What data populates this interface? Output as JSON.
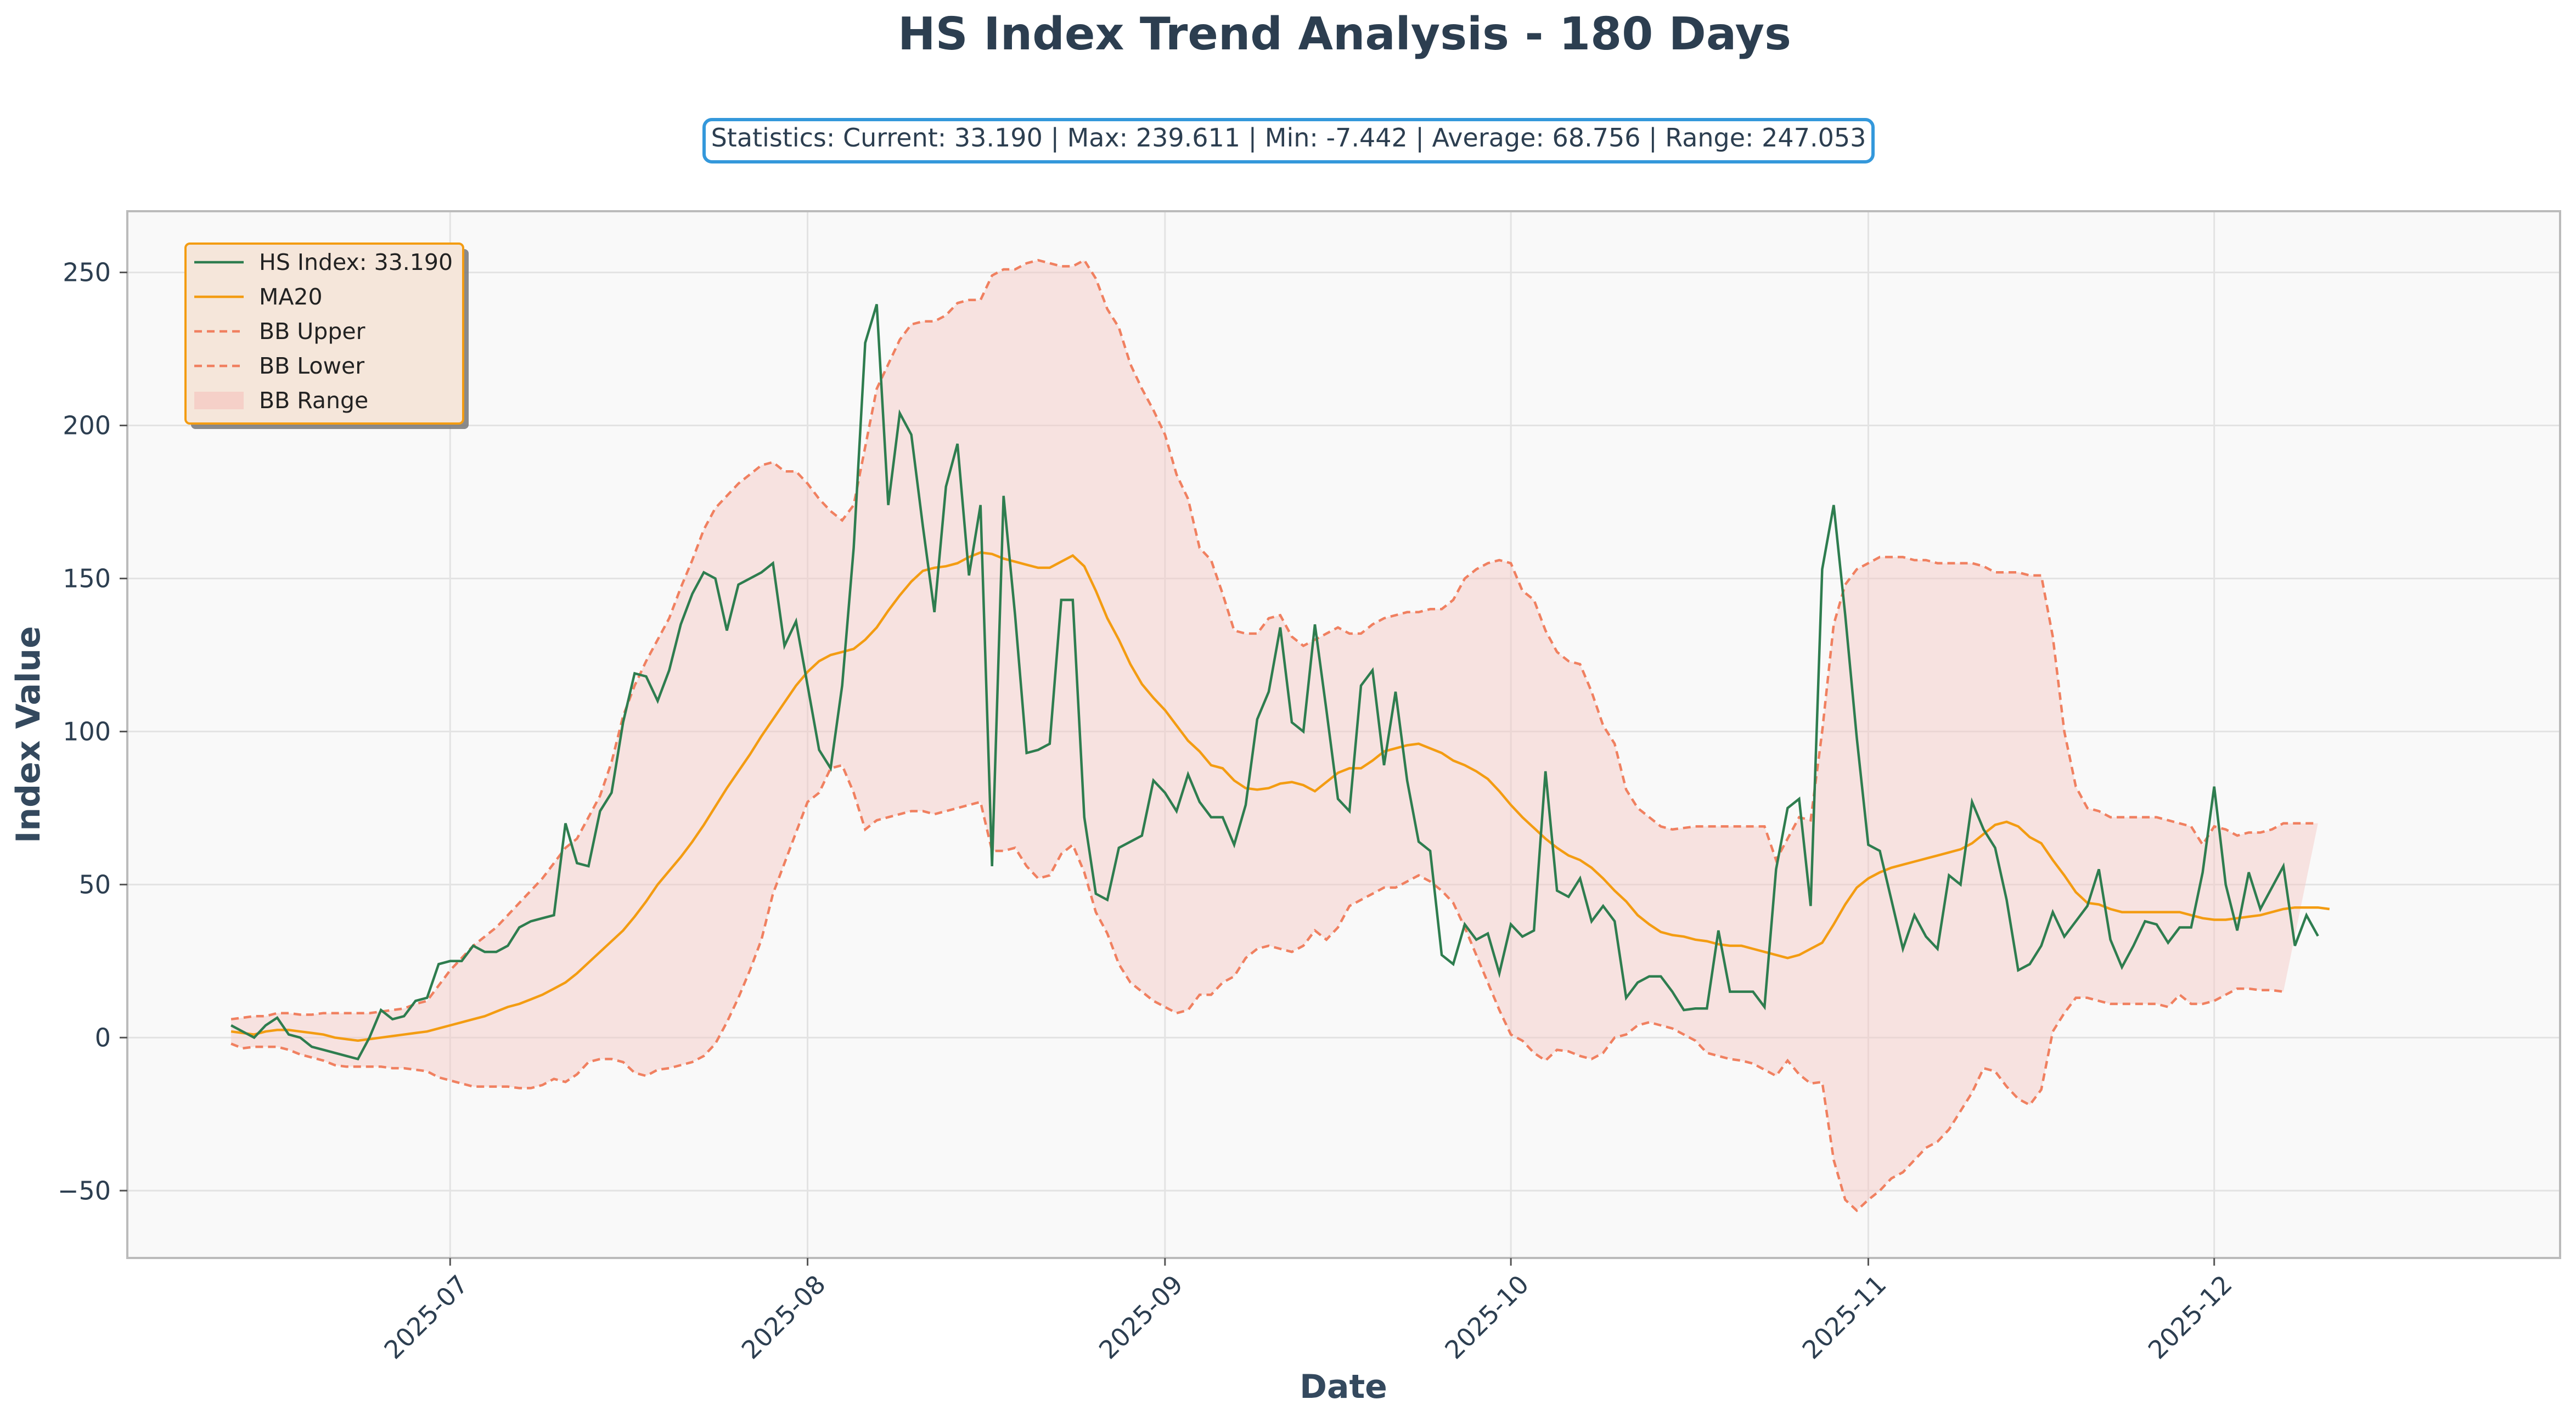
{
  "chart_data": {
    "type": "line",
    "title": "HS Index Trend Analysis - 180 Days",
    "stats_label": "Statistics: Current: 33.190 | Max: 239.611 | Min: -7.442 | Average: 68.756 | Range: 247.053",
    "xlabel": "Date",
    "ylabel": "Index Value",
    "x_start": "2025-06-12",
    "x_step_days": 1,
    "xlim": [
      "2025-06-03",
      "2025-12-31"
    ],
    "ylim": [
      -72,
      270
    ],
    "x_ticks": [
      {
        "date": "2025-07-01",
        "label": "2025-07"
      },
      {
        "date": "2025-08-01",
        "label": "2025-08"
      },
      {
        "date": "2025-09-01",
        "label": "2025-09"
      },
      {
        "date": "2025-10-01",
        "label": "2025-10"
      },
      {
        "date": "2025-11-01",
        "label": "2025-11"
      },
      {
        "date": "2025-12-01",
        "label": "2025-12"
      }
    ],
    "y_ticks": [
      {
        "value": 250,
        "label": "250"
      },
      {
        "value": 200,
        "label": "200"
      },
      {
        "value": 150,
        "label": "150"
      },
      {
        "value": 100,
        "label": "100"
      },
      {
        "value": 50,
        "label": "50"
      },
      {
        "value": 0,
        "label": "0"
      },
      {
        "value": -50,
        "label": "−50"
      }
    ],
    "grid": true,
    "legend_position": "top-left",
    "colors": {
      "hs": "#2e7d4f",
      "ma": "#f39c12",
      "bb": "#f08060",
      "bb_fill": "#f5c6c0",
      "plot_bg": "#f9f9f9",
      "legend_bg": "#f5e6da",
      "legend_border": "#f39c12",
      "stats_border": "#3498db"
    },
    "series": [
      {
        "name": "HS Index: 33.190",
        "key": "hs",
        "values": [
          4.0,
          2.0,
          0.0,
          4.0,
          6.5,
          1.0,
          0.0,
          -3.0,
          -4.0,
          -5.0,
          -6.0,
          -7.0,
          0.0,
          9.0,
          6.0,
          7.0,
          12.0,
          13.0,
          24.0,
          25.0,
          25.0,
          30.0,
          28.0,
          28.0,
          30.0,
          36.0,
          38.0,
          39.0,
          40.0,
          70.0,
          57.0,
          56.0,
          74.0,
          80.0,
          103.0,
          119.0,
          118.0,
          110.0,
          120.0,
          135.0,
          145.0,
          152.0,
          150.0,
          133.0,
          148.0,
          150.0,
          152.0,
          155.0,
          128.0,
          136.0,
          115.0,
          94.0,
          88.0,
          115.0,
          160.0,
          227.0,
          239.6,
          174.0,
          204.0,
          197.0,
          167.0,
          139.0,
          180.0,
          194.0,
          151.0,
          174.0,
          56.0,
          177.0,
          138.0,
          93.0,
          94.0,
          96.0,
          143.0,
          143.0,
          72.0,
          47.0,
          45.0,
          62.0,
          64.0,
          66.0,
          84.0,
          80.0,
          74.0,
          86.0,
          77.0,
          72.0,
          72.0,
          63.0,
          76.0,
          104.0,
          113.0,
          134.0,
          103.0,
          100.0,
          135.0,
          107.0,
          78.0,
          74.0,
          115.0,
          120.0,
          89.0,
          113.0,
          84.0,
          64.0,
          61.0,
          27.0,
          24.0,
          37.0,
          32.0,
          34.0,
          21.0,
          37.0,
          33.0,
          35.0,
          87.0,
          48.0,
          46.0,
          52.0,
          38.0,
          43.0,
          38.0,
          13.0,
          18.0,
          20.0,
          20.0,
          15.0,
          9.0,
          9.5,
          9.5,
          35.0,
          15.0,
          15.0,
          15.0,
          10.0,
          55.0,
          75.0,
          78.0,
          43.0,
          153.0,
          174.0,
          138.0,
          98.0,
          63.0,
          61.0,
          45.0,
          29.0,
          40.0,
          33.0,
          29.0,
          53.0,
          50.0,
          77.0,
          68.0,
          62.0,
          45.0,
          22.0,
          24.0,
          30.0,
          41.0,
          33.0,
          38.0,
          43.0,
          55.0,
          32.0,
          23.0,
          30.0,
          38.0,
          37.0,
          31.0,
          36.0,
          36.0,
          54.0,
          82.0,
          50.0,
          35.0,
          54.0,
          42.0,
          49.0,
          56.0,
          30.0,
          40.0,
          33.19
        ]
      },
      {
        "name": "MA20",
        "key": "ma",
        "values": [
          2.0,
          1.5,
          1.0,
          2.0,
          2.5,
          2.5,
          2.0,
          1.5,
          1.0,
          0.0,
          -0.5,
          -1.0,
          -0.5,
          0.0,
          0.5,
          1.0,
          1.5,
          2.0,
          3.0,
          4.0,
          5.0,
          6.0,
          7.0,
          8.5,
          10.0,
          11.0,
          12.5,
          14.0,
          16.0,
          18.0,
          21.0,
          24.5,
          28.0,
          31.5,
          35.0,
          39.5,
          44.5,
          50.0,
          54.5,
          59.0,
          64.0,
          69.5,
          75.5,
          81.5,
          87.0,
          92.5,
          98.5,
          104.0,
          109.5,
          115.0,
          119.5,
          123.0,
          125.0,
          126.0,
          127.0,
          130.0,
          134.0,
          139.5,
          144.5,
          149.0,
          152.5,
          153.5,
          154.0,
          155.0,
          157.0,
          158.5,
          158.0,
          156.5,
          155.5,
          154.5,
          153.5,
          153.5,
          155.5,
          157.5,
          154.0,
          146.0,
          137.0,
          130.0,
          122.0,
          115.5,
          111.0,
          107.0,
          102.0,
          97.0,
          93.5,
          89.0,
          88.0,
          84.0,
          81.5,
          81.0,
          81.5,
          83.0,
          83.5,
          82.5,
          80.5,
          83.5,
          86.5,
          88.0,
          88.0,
          90.5,
          93.5,
          94.5,
          95.5,
          96.0,
          94.5,
          93.0,
          90.5,
          89.0,
          87.0,
          84.5,
          80.5,
          76.0,
          72.0,
          68.5,
          65.0,
          62.0,
          59.5,
          58.0,
          55.5,
          52.0,
          48.0,
          44.5,
          40.0,
          37.0,
          34.5,
          33.5,
          33.0,
          32.0,
          31.5,
          30.5,
          30.0,
          30.0,
          29.0,
          28.0,
          27.0,
          26.0,
          27.0,
          29.0,
          31.0,
          37.0,
          43.5,
          49.0,
          52.0,
          54.0,
          55.5,
          56.5,
          57.5,
          58.5,
          59.5,
          60.5,
          61.5,
          63.5,
          66.5,
          69.5,
          70.5,
          69.0,
          65.5,
          63.5,
          58.0,
          53.0,
          47.5,
          44.0,
          43.5,
          42.0,
          41.0,
          41.0,
          41.0,
          41.0,
          41.0,
          41.0,
          40.0,
          39.0,
          38.5,
          38.5,
          39.0,
          39.5,
          40.0,
          41.0,
          42.0,
          42.5,
          42.5,
          42.5,
          42.0
        ]
      },
      {
        "name": "BB Upper",
        "key": "upper",
        "values": [
          6.0,
          6.5,
          7.0,
          7.0,
          8.0,
          8.0,
          7.5,
          7.5,
          8.0,
          8.0,
          8.0,
          8.0,
          8.0,
          8.5,
          9.0,
          9.5,
          11.0,
          12.0,
          17.0,
          22.0,
          26.0,
          30.0,
          33.0,
          36.0,
          40.0,
          44.0,
          48.0,
          52.0,
          57.0,
          62.0,
          65.0,
          72.0,
          79.0,
          90.0,
          105.0,
          115.0,
          123.0,
          130.0,
          137.0,
          147.0,
          156.0,
          166.0,
          173.0,
          177.0,
          181.0,
          184.0,
          187.0,
          188.0,
          185.0,
          185.0,
          181.0,
          176.0,
          172.0,
          169.0,
          174.0,
          193.0,
          212.0,
          220.0,
          228.0,
          233.0,
          234.0,
          234.0,
          236.0,
          240.0,
          241.0,
          241.0,
          249.0,
          251.0,
          251.0,
          253.0,
          254.0,
          253.0,
          252.0,
          252.0,
          254.0,
          248.0,
          238.0,
          232.0,
          220.0,
          212.0,
          205.0,
          197.0,
          184.0,
          176.0,
          160.0,
          156.0,
          145.0,
          133.0,
          132.0,
          132.0,
          137.0,
          138.0,
          131.0,
          128.0,
          130.0,
          132.0,
          134.0,
          132.0,
          132.0,
          135.0,
          137.0,
          138.0,
          139.0,
          139.0,
          140.0,
          140.0,
          143.0,
          150.0,
          153.0,
          155.0,
          156.0,
          155.0,
          146.0,
          143.0,
          133.0,
          126.0,
          123.0,
          122.0,
          113.0,
          102.0,
          96.0,
          81.0,
          75.0,
          72.0,
          69.0,
          68.0,
          68.5,
          69.0,
          69.0,
          69.0,
          69.0,
          69.0,
          69.0,
          69.0,
          58.0,
          65.0,
          72.0,
          71.0,
          100.0,
          135.0,
          148.0,
          153.0,
          155.0,
          157.0,
          157.0,
          157.0,
          156.0,
          156.0,
          155.0,
          155.0,
          155.0,
          155.0,
          154.0,
          152.0,
          152.0,
          152.0,
          151.0,
          151.0,
          131.0,
          100.0,
          82.0,
          75.0,
          74.0,
          72.0,
          72.0,
          72.0,
          72.0,
          72.0,
          71.0,
          70.0,
          69.0,
          63.0,
          69.0,
          68.0,
          66.0,
          67.0,
          67.0,
          68.0,
          70.0,
          70.0,
          70.0,
          70.0
        ]
      },
      {
        "name": "BB Lower",
        "key": "lower",
        "values": [
          -2.0,
          -3.5,
          -3.0,
          -3.0,
          -3.0,
          -4.0,
          -5.5,
          -6.5,
          -7.5,
          -9.0,
          -9.5,
          -9.5,
          -9.5,
          -9.5,
          -10.0,
          -10.0,
          -10.5,
          -11.0,
          -13.0,
          -14.0,
          -15.0,
          -16.0,
          -16.0,
          -16.0,
          -16.0,
          -16.5,
          -16.5,
          -15.5,
          -13.5,
          -14.5,
          -12.0,
          -8.0,
          -7.0,
          -7.0,
          -8.0,
          -11.5,
          -12.5,
          -10.5,
          -10.0,
          -9.0,
          -8.0,
          -6.0,
          -2.0,
          5.0,
          13.0,
          22.0,
          32.0,
          47.0,
          57.0,
          67.0,
          77.0,
          80.0,
          88.0,
          89.0,
          80.0,
          68.0,
          71.0,
          72.0,
          73.0,
          74.0,
          74.0,
          73.0,
          74.0,
          75.0,
          76.0,
          77.0,
          61.0,
          61.0,
          62.0,
          56.0,
          52.0,
          53.0,
          60.0,
          63.0,
          54.0,
          41.0,
          34.0,
          24.0,
          18.0,
          15.0,
          12.0,
          10.0,
          8.0,
          9.0,
          14.0,
          14.0,
          18.0,
          20.0,
          26.0,
          29.0,
          30.0,
          29.0,
          28.0,
          30.0,
          35.0,
          32.0,
          36.0,
          43.0,
          45.0,
          47.0,
          49.0,
          49.0,
          51.0,
          53.0,
          51.0,
          48.0,
          44.0,
          36.0,
          27.0,
          18.0,
          9.0,
          1.0,
          -1.0,
          -5.0,
          -7.5,
          -4.0,
          -4.5,
          -6.0,
          -7.0,
          -5.0,
          0.0,
          1.0,
          4.0,
          5.0,
          4.0,
          3.0,
          1.0,
          -1.0,
          -5.0,
          -6.0,
          -7.0,
          -7.5,
          -8.5,
          -10.5,
          -12.5,
          -7.5,
          -12.0,
          -15.0,
          -14.5,
          -40.0,
          -53.0,
          -56.5,
          -53.0,
          -50.0,
          -46.0,
          -44.0,
          -40.0,
          -36.0,
          -34.0,
          -30.0,
          -24.0,
          -18.0,
          -10.0,
          -11.0,
          -16.0,
          -20.0,
          -22.0,
          -17.0,
          2.0,
          8.0,
          13.0,
          13.0,
          12.0,
          11.0,
          11.0,
          11.0,
          11.0,
          11.0,
          10.0,
          14.0,
          11.0,
          11.0,
          12.0,
          14.0,
          16.0,
          16.0,
          15.5,
          15.5,
          15.0
        ]
      }
    ],
    "legend": [
      {
        "key": "hs",
        "label": "HS Index: 33.190"
      },
      {
        "key": "ma",
        "label": "MA20"
      },
      {
        "key": "upper",
        "label": "BB Upper"
      },
      {
        "key": "lower",
        "label": "BB Lower"
      },
      {
        "key": "range",
        "label": "BB Range"
      }
    ]
  }
}
